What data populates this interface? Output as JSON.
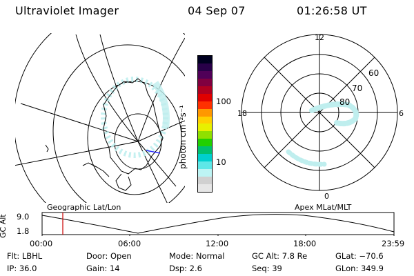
{
  "header": {
    "title": "Ultraviolet Imager",
    "date": "04 Sep 07",
    "time": "01:26:58 UT"
  },
  "colorbar": {
    "unit_label": "photon cm⁻²s⁻¹",
    "ticks": [
      "100",
      "10"
    ]
  },
  "polar_plot": {
    "lat_labels": [
      "80",
      "70",
      "60"
    ],
    "mlt_labels": {
      "top": "12",
      "left": "18",
      "right": "6",
      "bottom": "0"
    }
  },
  "maps": {
    "left_label": "Geographic Lat/Lon",
    "right_label": "Apex MLat/MLT"
  },
  "altitude_plot": {
    "ylabel": "GC Alt",
    "yticks": [
      "9.0",
      "1.8"
    ],
    "xticks": [
      "00:00",
      "06:00",
      "12:00",
      "18:00",
      "23:59"
    ],
    "current_time_marker": "01:27"
  },
  "info": {
    "filter": "Flt: LBHL",
    "ip": "IP: 36.0",
    "door": "Door: Open",
    "gain": "Gain: 14",
    "mode": "Mode: Normal",
    "dsp": "Dsp:     2.6",
    "gc_alt": "GC Alt: 7.8 Re",
    "seq": "Seq: 39",
    "glat": "GLat: −70.6",
    "glon": "GLon: 349.9"
  },
  "colors": {
    "aurora": "#bfeeee",
    "marker": "#cc0000",
    "colorbar_steps": [
      "#e6e6e6",
      "#d0d0d0",
      "#bdf4f4",
      "#5ee7e7",
      "#00cfcf",
      "#00c070",
      "#22d000",
      "#90e000",
      "#e8f000",
      "#ffd000",
      "#ff9800",
      "#ff3000",
      "#e00000",
      "#b00020",
      "#800040",
      "#500058",
      "#280048",
      "#000020"
    ]
  }
}
